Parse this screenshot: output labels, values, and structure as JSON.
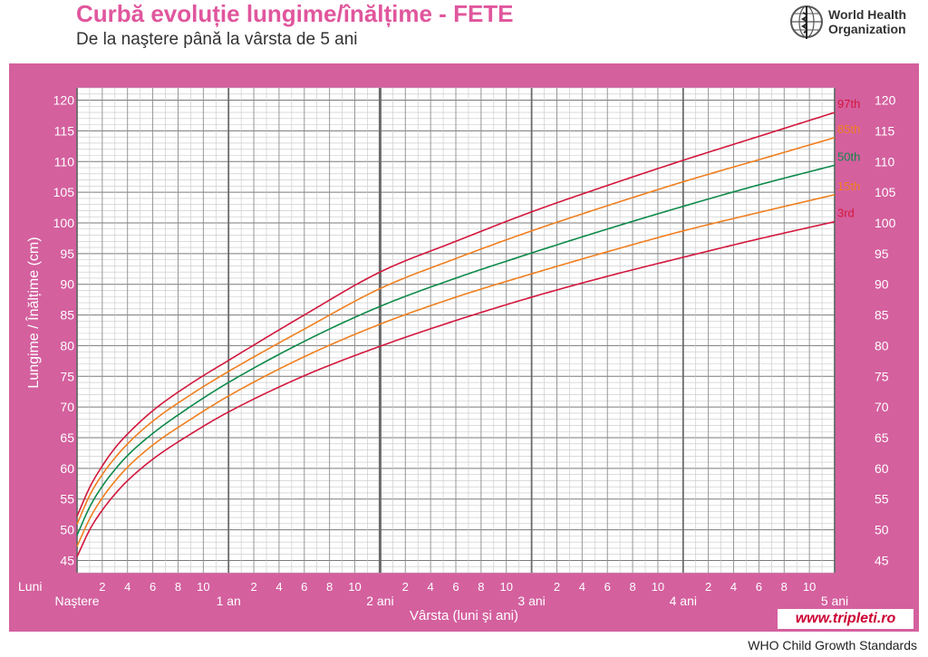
{
  "header": {
    "title": "Curbă evoluție lungime/înălțime - FETE",
    "subtitle": "De la naştere până la vârsta de 5 ani",
    "org_line1": "World Health",
    "org_line2": "Organization"
  },
  "website": "www.tripleti.ro",
  "footer": "WHO Child Growth Standards",
  "colors": {
    "frame": "#d4609e",
    "title": "#e0569d",
    "p97": "#d3173d",
    "p85": "#f07f1f",
    "p50": "#0e8a4a",
    "p15": "#f07f1f",
    "p3": "#d3173d"
  },
  "chart_data": {
    "type": "line",
    "title": "Curbă evoluție lungime/înălțime - FETE",
    "xlabel": "Vârsta (luni şi ani)",
    "ylabel": "Lungime / Înălțime  (cm)",
    "xlim": [
      0,
      60
    ],
    "ylim": [
      43,
      122
    ],
    "y_ticks": [
      45,
      50,
      55,
      60,
      65,
      70,
      75,
      80,
      85,
      90,
      95,
      100,
      105,
      110,
      115,
      120
    ],
    "x_axis_label_months": "Luni",
    "month_ticks": [
      "2",
      "4",
      "6",
      "8",
      "10"
    ],
    "year_labels": [
      "Naştere",
      "1 an",
      "2 ani",
      "3 ani",
      "4 ani",
      "5 ani"
    ],
    "grid": true,
    "x": [
      0,
      1,
      2,
      3,
      4,
      6,
      9,
      12,
      18,
      24,
      30,
      36,
      42,
      48,
      54,
      60
    ],
    "series": [
      {
        "name": "97th",
        "values": [
          52.2,
          56.9,
          60.4,
          63.3,
          65.6,
          69.4,
          73.8,
          77.6,
          85.0,
          92.0,
          97.0,
          101.8,
          106.1,
          110.2,
          114.1,
          118.0
        ]
      },
      {
        "name": "85th",
        "values": [
          50.9,
          55.6,
          59.0,
          61.7,
          64.0,
          67.7,
          72.0,
          75.8,
          82.7,
          89.3,
          94.2,
          98.7,
          102.8,
          106.7,
          110.3,
          113.9
        ]
      },
      {
        "name": "50th",
        "values": [
          49.1,
          53.7,
          57.1,
          59.8,
          62.1,
          65.7,
          70.1,
          74.0,
          80.7,
          86.4,
          91.0,
          95.1,
          99.0,
          102.7,
          106.2,
          109.4
        ]
      },
      {
        "name": "15th",
        "values": [
          47.3,
          51.8,
          55.2,
          57.9,
          60.2,
          63.8,
          68.0,
          71.8,
          78.2,
          83.5,
          87.9,
          91.7,
          95.3,
          98.7,
          101.7,
          104.6
        ]
      },
      {
        "name": "3rd",
        "values": [
          45.6,
          50.0,
          53.2,
          55.8,
          58.0,
          61.5,
          65.6,
          69.2,
          75.1,
          79.9,
          84.1,
          87.9,
          91.3,
          94.4,
          97.4,
          100.2
        ]
      }
    ]
  }
}
